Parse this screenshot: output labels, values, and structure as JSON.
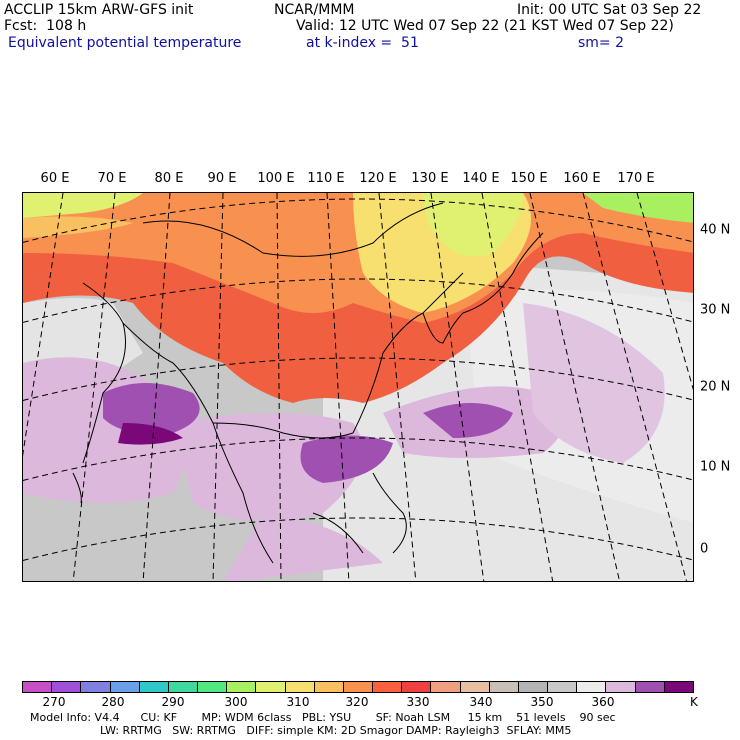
{
  "header": {
    "model": "ACCLIP 15km ARW-GFS init",
    "forecast": "Fcst:  108 h",
    "field": "Equivalent potential temperature",
    "center": "NCAR/MMM",
    "valid": "Valid: 12 UTC Wed 07 Sep 22 (21 KST Wed 07 Sep 22)",
    "level": "at k-index =  51",
    "init": "Init: 00 UTC Sat 03 Sep 22",
    "smoothing": "sm= 2"
  },
  "map": {
    "lon_labels": [
      "60 E",
      "70 E",
      "80 E",
      "90 E",
      "100 E",
      "110 E",
      "120 E",
      "130 E",
      "140 E",
      "150 E",
      "160 E",
      "170 E"
    ],
    "lat_labels": [
      "40 N",
      "30 N",
      "20 N",
      "10 N",
      "0"
    ]
  },
  "colorbar": {
    "colors": [
      "#c64fc6",
      "#a050d8",
      "#8080e0",
      "#6aa0e8",
      "#30c8c8",
      "#3ed8a0",
      "#50e880",
      "#a8f060",
      "#e0f070",
      "#f8e070",
      "#f8c060",
      "#f89050",
      "#f86040",
      "#f04040",
      "#f0a080",
      "#e8c0a0",
      "#c8c0b8",
      "#b4b4b4",
      "#c8c8c8",
      "#ececec",
      "#dcb8dc",
      "#a050b0",
      "#7a0878"
    ],
    "ticks": [
      "270",
      "280",
      "290",
      "300",
      "310",
      "320",
      "330",
      "340",
      "350",
      "360"
    ],
    "unit": "K"
  },
  "model_info": {
    "line1": "Model Info: V4.4      CU: KF       MP: WDM 6class   PBL: YSU       SF: Noah LSM     15 km    51 levels    90 sec",
    "line2": "LW: RRTMG   SW: RRTMG   DIFF: simple KM: 2D Smagor DAMP: Rayleigh3  SFLAY: MM5"
  }
}
